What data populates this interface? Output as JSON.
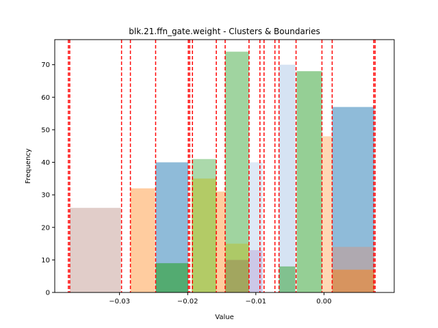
{
  "chart_data": {
    "type": "bar",
    "title": "blk.21.ffn_gate.weight - Clusters & Boundaries",
    "xlabel": "Value",
    "ylabel": "Frequency",
    "xlim": [
      -0.0395,
      0.0103
    ],
    "ylim": [
      0,
      77.7
    ],
    "grid": false,
    "x_ticks": [
      {
        "value": -0.03,
        "label": "−0.03"
      },
      {
        "value": -0.02,
        "label": "−0.02"
      },
      {
        "value": -0.01,
        "label": "−0.01"
      },
      {
        "value": 0.0,
        "label": "0.00"
      }
    ],
    "y_ticks": [
      0,
      10,
      20,
      30,
      40,
      50,
      60,
      70
    ],
    "bars": [
      {
        "x0": -0.0373,
        "x1": -0.0298,
        "y": 26,
        "color": "#c49c94",
        "opacity": 0.5
      },
      {
        "x0": -0.0284,
        "x1": -0.0248,
        "y": 32,
        "color": "#ff7f0e",
        "opacity": 0.4
      },
      {
        "x0": -0.0247,
        "x1": -0.0199,
        "y": 40,
        "color": "#1f77b4",
        "opacity": 0.5
      },
      {
        "x0": -0.0247,
        "x1": -0.0199,
        "y": 9,
        "color": "#2ca02c",
        "opacity": 0.6
      },
      {
        "x0": -0.0194,
        "x1": -0.0158,
        "y": 41,
        "color": "#2ca02c",
        "opacity": 0.4
      },
      {
        "x0": -0.0194,
        "x1": -0.0158,
        "y": 35,
        "color": "#bcbd22",
        "opacity": 0.5
      },
      {
        "x0": -0.0158,
        "x1": -0.0145,
        "y": 31,
        "color": "#ff7f0e",
        "opacity": 0.4
      },
      {
        "x0": -0.0145,
        "x1": -0.011,
        "y": 74,
        "color": "#2ca02c",
        "opacity": 0.45
      },
      {
        "x0": -0.0145,
        "x1": -0.011,
        "y": 15,
        "color": "#bcbd22",
        "opacity": 0.45
      },
      {
        "x0": -0.0145,
        "x1": -0.011,
        "y": 10,
        "color": "#8c564b",
        "opacity": 0.3
      },
      {
        "x0": -0.011,
        "x1": -0.009,
        "y": 40,
        "color": "#aec7e8",
        "opacity": 0.4
      },
      {
        "x0": -0.011,
        "x1": -0.009,
        "y": 13,
        "color": "#9467bd",
        "opacity": 0.25
      },
      {
        "x0": -0.0066,
        "x1": -0.0042,
        "y": 70,
        "color": "#aec7e8",
        "opacity": 0.5
      },
      {
        "x0": -0.0066,
        "x1": -0.0042,
        "y": 8,
        "color": "#2ca02c",
        "opacity": 0.5
      },
      {
        "x0": -0.004,
        "x1": -0.0003,
        "y": 68,
        "color": "#2ca02c",
        "opacity": 0.5
      },
      {
        "x0": -0.0003,
        "x1": 0.0012,
        "y": 48,
        "color": "#ff7f0e",
        "opacity": 0.3
      },
      {
        "x0": 0.0012,
        "x1": 0.0074,
        "y": 57,
        "color": "#1f77b4",
        "opacity": 0.5
      },
      {
        "x0": 0.0012,
        "x1": 0.0074,
        "y": 14,
        "color": "#c49c94",
        "opacity": 0.6
      },
      {
        "x0": 0.0012,
        "x1": 0.0074,
        "y": 7,
        "color": "#ff7f0e",
        "opacity": 0.5
      }
    ],
    "boundaries": [
      -0.0375,
      -0.0373,
      -0.0297,
      -0.0284,
      -0.0247,
      -0.0199,
      -0.0197,
      -0.0193,
      -0.0158,
      -0.0145,
      -0.011,
      -0.0094,
      -0.0088,
      -0.0072,
      -0.0066,
      -0.0041,
      -0.0003,
      0.0012,
      0.0073,
      0.0075
    ],
    "boundary_color": "#ff0000"
  }
}
